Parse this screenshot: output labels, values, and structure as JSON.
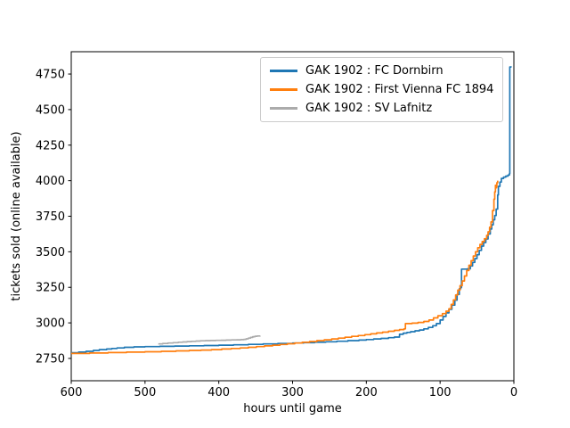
{
  "chart_data": {
    "type": "line",
    "title": "",
    "xlabel": "hours until game",
    "ylabel": "tickets sold (online available)",
    "x_axis": {
      "range": [
        600,
        0
      ],
      "inverted": true,
      "ticks": [
        600,
        500,
        400,
        300,
        200,
        100,
        0
      ]
    },
    "y_axis": {
      "range": [
        2593,
        4907
      ],
      "ticks": [
        2750,
        3000,
        3250,
        3500,
        3750,
        4000,
        4250,
        4500,
        4750
      ]
    },
    "grid": false,
    "legend_position": "upper right inside",
    "series": [
      {
        "name": "GAK 1902 : FC Dornbirn",
        "color": "#1f77b4",
        "points": [
          [
            600,
            2790
          ],
          [
            590,
            2795
          ],
          [
            580,
            2800
          ],
          [
            570,
            2806
          ],
          [
            562,
            2812
          ],
          [
            552,
            2816
          ],
          [
            545,
            2820
          ],
          [
            538,
            2824
          ],
          [
            528,
            2828
          ],
          [
            515,
            2831
          ],
          [
            500,
            2833
          ],
          [
            480,
            2835
          ],
          [
            460,
            2837
          ],
          [
            440,
            2839
          ],
          [
            420,
            2841
          ],
          [
            400,
            2843
          ],
          [
            380,
            2846
          ],
          [
            360,
            2849
          ],
          [
            340,
            2852
          ],
          [
            320,
            2855
          ],
          [
            300,
            2858
          ],
          [
            285,
            2861
          ],
          [
            270,
            2864
          ],
          [
            255,
            2867
          ],
          [
            240,
            2871
          ],
          [
            225,
            2875
          ],
          [
            210,
            2879
          ],
          [
            200,
            2883
          ],
          [
            190,
            2887
          ],
          [
            180,
            2891
          ],
          [
            170,
            2896
          ],
          [
            162,
            2900
          ],
          [
            155,
            2920
          ],
          [
            150,
            2928
          ],
          [
            145,
            2933
          ],
          [
            140,
            2938
          ],
          [
            134,
            2944
          ],
          [
            128,
            2950
          ],
          [
            122,
            2958
          ],
          [
            116,
            2968
          ],
          [
            110,
            2980
          ],
          [
            105,
            2995
          ],
          [
            100,
            3020
          ],
          [
            96,
            3045
          ],
          [
            92,
            3070
          ],
          [
            88,
            3095
          ],
          [
            84,
            3125
          ],
          [
            80,
            3160
          ],
          [
            77,
            3200
          ],
          [
            74,
            3240
          ],
          [
            72,
            3250
          ],
          [
            71,
            3378
          ],
          [
            63,
            3380
          ],
          [
            59,
            3400
          ],
          [
            56,
            3425
          ],
          [
            53,
            3452
          ],
          [
            50,
            3480
          ],
          [
            47,
            3510
          ],
          [
            44,
            3540
          ],
          [
            41,
            3565
          ],
          [
            38,
            3590
          ],
          [
            35,
            3625
          ],
          [
            32,
            3660
          ],
          [
            30,
            3690
          ],
          [
            28,
            3725
          ],
          [
            26,
            3755
          ],
          [
            24,
            3800
          ],
          [
            22,
            3900
          ],
          [
            21,
            3960
          ],
          [
            19,
            3990
          ],
          [
            17,
            4016
          ],
          [
            14,
            4025
          ],
          [
            11,
            4032
          ],
          [
            8,
            4040
          ],
          [
            6,
            4050
          ],
          [
            5.5,
            4800
          ],
          [
            4,
            4805
          ]
        ]
      },
      {
        "name": "GAK 1902 : First Vienna FC 1894",
        "color": "#ff7f0e",
        "points": [
          [
            600,
            2785
          ],
          [
            575,
            2788
          ],
          [
            550,
            2791
          ],
          [
            525,
            2794
          ],
          [
            500,
            2797
          ],
          [
            478,
            2800
          ],
          [
            458,
            2803
          ],
          [
            440,
            2806
          ],
          [
            424,
            2809
          ],
          [
            410,
            2812
          ],
          [
            396,
            2816
          ],
          [
            383,
            2820
          ],
          [
            371,
            2824
          ],
          [
            360,
            2828
          ],
          [
            349,
            2833
          ],
          [
            338,
            2838
          ],
          [
            327,
            2843
          ],
          [
            317,
            2848
          ],
          [
            307,
            2853
          ],
          [
            297,
            2858
          ],
          [
            287,
            2863
          ],
          [
            277,
            2869
          ],
          [
            267,
            2875
          ],
          [
            257,
            2881
          ],
          [
            247,
            2887
          ],
          [
            238,
            2893
          ],
          [
            229,
            2899
          ],
          [
            220,
            2905
          ],
          [
            211,
            2911
          ],
          [
            202,
            2917
          ],
          [
            194,
            2923
          ],
          [
            186,
            2929
          ],
          [
            178,
            2935
          ],
          [
            170,
            2941
          ],
          [
            162,
            2947
          ],
          [
            155,
            2953
          ],
          [
            149,
            2958
          ],
          [
            147,
            2995
          ],
          [
            138,
            2998
          ],
          [
            130,
            3003
          ],
          [
            122,
            3010
          ],
          [
            115,
            3020
          ],
          [
            109,
            3035
          ],
          [
            103,
            3050
          ],
          [
            97,
            3065
          ],
          [
            92,
            3082
          ],
          [
            88,
            3100
          ],
          [
            85,
            3130
          ],
          [
            82,
            3162
          ],
          [
            79,
            3196
          ],
          [
            76,
            3230
          ],
          [
            73,
            3262
          ],
          [
            70,
            3295
          ],
          [
            67,
            3330
          ],
          [
            64,
            3368
          ],
          [
            61,
            3405
          ],
          [
            58,
            3438
          ],
          [
            55,
            3470
          ],
          [
            52,
            3500
          ],
          [
            49,
            3528
          ],
          [
            46,
            3552
          ],
          [
            43,
            3572
          ],
          [
            40,
            3592
          ],
          [
            37,
            3615
          ],
          [
            35,
            3640
          ],
          [
            33,
            3672
          ],
          [
            31,
            3710
          ],
          [
            29,
            3790
          ],
          [
            27,
            3870
          ],
          [
            26,
            3922
          ],
          [
            25,
            3968
          ],
          [
            24.5,
            3950
          ],
          [
            23.5,
            3958
          ],
          [
            23,
            3985
          ],
          [
            22,
            4000
          ]
        ]
      },
      {
        "name": "GAK 1902 : SV Lafnitz",
        "color": "#ababab",
        "points": [
          [
            482,
            2852
          ],
          [
            476,
            2855
          ],
          [
            469,
            2858
          ],
          [
            462,
            2861
          ],
          [
            455,
            2864
          ],
          [
            449,
            2866
          ],
          [
            443,
            2868
          ],
          [
            437,
            2870
          ],
          [
            431,
            2872
          ],
          [
            425,
            2874
          ],
          [
            418,
            2875
          ],
          [
            411,
            2876
          ],
          [
            404,
            2877
          ],
          [
            397,
            2878
          ],
          [
            390,
            2879
          ],
          [
            383,
            2880
          ],
          [
            376,
            2881
          ],
          [
            370,
            2882
          ],
          [
            366,
            2884
          ],
          [
            363,
            2888
          ],
          [
            360,
            2893
          ],
          [
            357,
            2898
          ],
          [
            354,
            2903
          ],
          [
            351,
            2906
          ],
          [
            348,
            2908
          ],
          [
            344,
            2909
          ]
        ]
      }
    ]
  }
}
